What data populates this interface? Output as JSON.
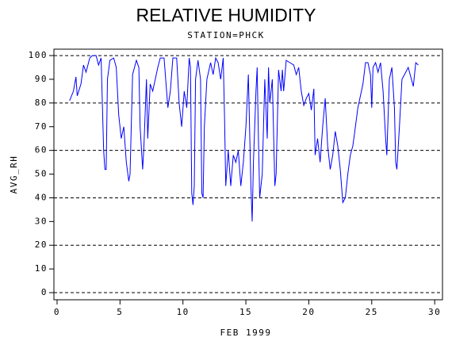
{
  "chart_data": {
    "type": "line",
    "title": "RELATIVE HUMIDITY",
    "subtitle": "STATION=PHCK",
    "x_label": "FEB 1999",
    "y_label": "AVG_RH",
    "xlim": [
      -0.25,
      30.62
    ],
    "xticks": [
      0,
      5,
      10,
      15,
      20,
      25,
      30
    ],
    "ylim": [
      -3,
      102.7
    ],
    "yticks": [
      0,
      10,
      20,
      30,
      40,
      50,
      60,
      70,
      80,
      90,
      100
    ],
    "grid_lines": [
      0,
      20,
      40,
      60,
      80,
      100
    ],
    "series": [
      {
        "name": "AVG_RH",
        "color": "#0000ff",
        "x": [
          1.0,
          1.3,
          1.5,
          1.6,
          1.9,
          2.1,
          2.3,
          2.6,
          2.8,
          3.1,
          3.3,
          3.5,
          3.7,
          3.8,
          3.9,
          4.0,
          4.2,
          4.5,
          4.7,
          4.9,
          5.1,
          5.3,
          5.5,
          5.7,
          5.8,
          6.0,
          6.3,
          6.5,
          6.6,
          6.8,
          6.9,
          7.1,
          7.2,
          7.4,
          7.6,
          7.8,
          8.0,
          8.2,
          8.5,
          8.7,
          8.8,
          9.0,
          9.2,
          9.5,
          9.7,
          9.9,
          10.1,
          10.3,
          10.5,
          10.6,
          10.7,
          10.8,
          10.9,
          11.0,
          11.2,
          11.4,
          11.5,
          11.6,
          11.7,
          11.9,
          12.2,
          12.4,
          12.6,
          12.8,
          13.0,
          13.2,
          13.3,
          13.4,
          13.6,
          13.8,
          14.0,
          14.2,
          14.4,
          14.6,
          14.8,
          15.0,
          15.2,
          15.4,
          15.5,
          15.6,
          15.8,
          15.9,
          16.0,
          16.1,
          16.3,
          16.5,
          16.7,
          16.8,
          16.9,
          17.1,
          17.3,
          17.4,
          17.6,
          17.8,
          17.9,
          18.0,
          18.2,
          18.5,
          18.8,
          19.0,
          19.2,
          19.4,
          19.6,
          19.8,
          20.0,
          20.2,
          20.4,
          20.5,
          20.7,
          20.9,
          21.1,
          21.3,
          21.5,
          21.7,
          21.9,
          22.1,
          22.3,
          22.5,
          22.7,
          22.9,
          23.1,
          23.3,
          23.5,
          23.7,
          23.9,
          24.1,
          24.3,
          24.5,
          24.7,
          24.9,
          25.0,
          25.1,
          25.3,
          25.5,
          25.7,
          25.9,
          26.1,
          26.2,
          26.4,
          26.6,
          26.8,
          26.9,
          27.0,
          27.2,
          27.4,
          27.6,
          27.9,
          28.1,
          28.3,
          28.5,
          28.7
        ],
        "values": [
          81,
          85,
          91,
          83,
          88,
          96,
          93,
          99,
          100,
          100,
          96,
          99,
          60,
          52,
          52,
          90,
          98,
          99,
          95,
          75,
          65,
          70,
          55,
          47,
          50,
          92,
          98,
          95,
          70,
          52,
          62,
          90,
          65,
          88,
          85,
          90,
          95,
          99,
          99,
          85,
          78,
          85,
          99,
          99,
          80,
          70,
          85,
          78,
          99,
          95,
          42,
          37,
          45,
          90,
          98,
          90,
          42,
          40,
          70,
          90,
          97,
          92,
          99,
          97,
          90,
          99,
          75,
          45,
          60,
          45,
          58,
          55,
          60,
          45,
          55,
          70,
          92,
          45,
          30,
          55,
          85,
          95,
          65,
          40,
          50,
          90,
          65,
          95,
          80,
          90,
          45,
          50,
          94,
          85,
          94,
          85,
          98,
          97,
          96,
          92,
          95,
          85,
          79,
          82,
          84,
          77,
          86,
          58,
          65,
          55,
          70,
          82,
          62,
          52,
          58,
          68,
          62,
          52,
          38,
          40,
          50,
          58,
          62,
          70,
          78,
          83,
          88,
          97,
          97,
          92,
          78,
          95,
          97,
          93,
          97,
          85,
          65,
          58,
          90,
          95,
          78,
          55,
          52,
          70,
          90,
          92,
          95,
          91,
          87,
          97,
          96
        ]
      }
    ]
  }
}
